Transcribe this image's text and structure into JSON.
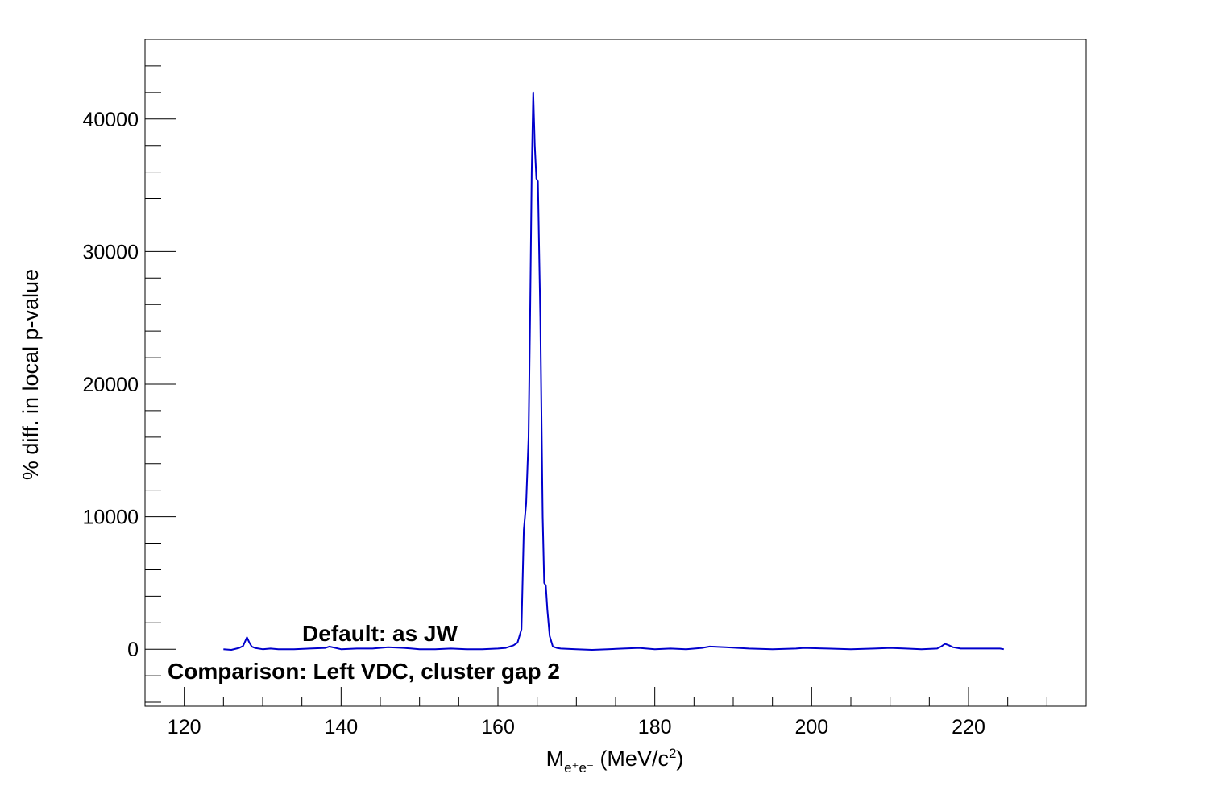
{
  "chart_data": {
    "type": "line",
    "xlabel": {
      "main": "M",
      "sub": "e⁺e⁻",
      "unit_pre": " (MeV/c",
      "sup": "2",
      "unit_post": ")"
    },
    "ylabel": "% diff. in local p-value",
    "xlim": [
      115,
      235
    ],
    "ylim": [
      -4300,
      46000
    ],
    "x_ticks": [
      120,
      140,
      160,
      180,
      200,
      220
    ],
    "x_tick_labels": [
      "120",
      "140",
      "160",
      "180",
      "200",
      "220"
    ],
    "y_ticks": [
      0,
      10000,
      20000,
      30000,
      40000
    ],
    "y_tick_labels": [
      "0",
      "10000",
      "20000",
      "30000",
      "40000"
    ],
    "annotations": [
      "Default: as JW",
      "Comparison: Left VDC, cluster gap 2"
    ],
    "line_color": "#0000cc",
    "series": [
      {
        "x": [
          125,
          126,
          127,
          127.5,
          128,
          128.3,
          128.6,
          129,
          130,
          131,
          132,
          134,
          136,
          138,
          138.5,
          140,
          142,
          144,
          146,
          148,
          150,
          152,
          154,
          156,
          158,
          160,
          161,
          162,
          162.5,
          163,
          163.3,
          163.6,
          163.9,
          164.1,
          164.3,
          164.5,
          164.7,
          164.9,
          165.1,
          165.4,
          165.7,
          165.9,
          166.1,
          166.3,
          166.6,
          167,
          167.5,
          168,
          170,
          172,
          174,
          176,
          178,
          180,
          182,
          184,
          186,
          187,
          189,
          192,
          195,
          198,
          199,
          202,
          205,
          208,
          210,
          212,
          214,
          216,
          216.5,
          217,
          217.5,
          218,
          219,
          222,
          224,
          224.5
        ],
        "y": [
          0,
          -50,
          100,
          250,
          900,
          500,
          200,
          100,
          0,
          50,
          0,
          0,
          50,
          100,
          200,
          0,
          50,
          50,
          150,
          100,
          0,
          0,
          50,
          0,
          0,
          50,
          100,
          300,
          500,
          1500,
          9000,
          11000,
          16000,
          25000,
          36000,
          42000,
          38000,
          35500,
          35300,
          25000,
          10000,
          5000,
          4800,
          3000,
          1000,
          200,
          100,
          50,
          0,
          -50,
          0,
          50,
          100,
          0,
          50,
          0,
          100,
          200,
          150,
          50,
          0,
          50,
          100,
          50,
          0,
          50,
          100,
          50,
          0,
          50,
          200,
          400,
          300,
          150,
          50,
          50,
          50,
          0
        ]
      }
    ]
  }
}
